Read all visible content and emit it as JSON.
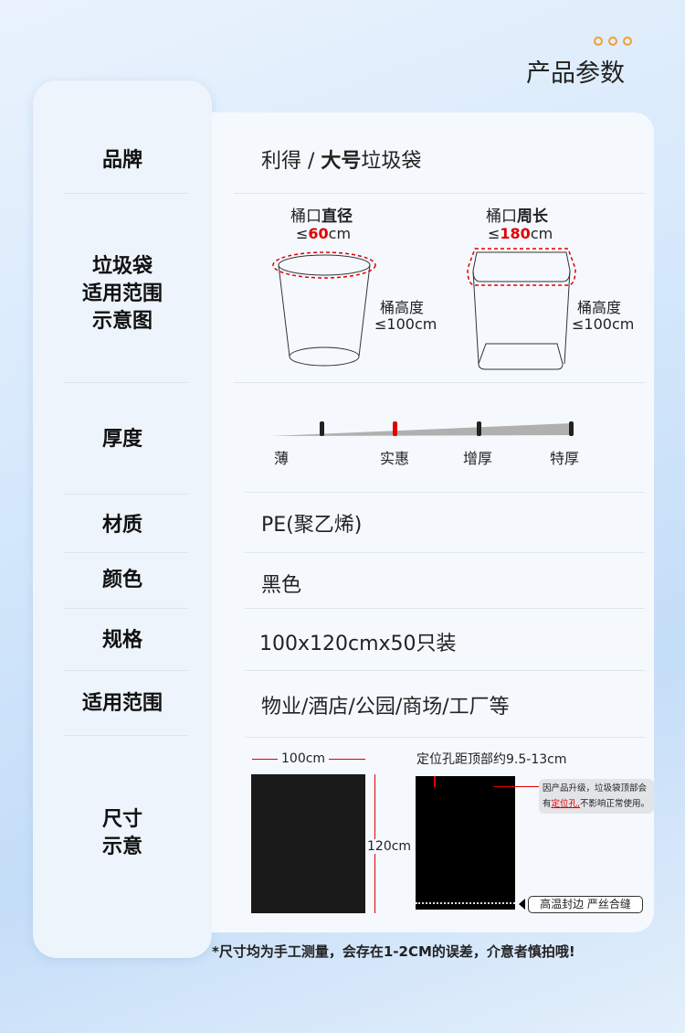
{
  "header": {
    "title": "产品参数"
  },
  "rows": {
    "brand": {
      "label": "品牌",
      "value_prefix": "利得 / ",
      "value_bold": "大号",
      "value_suffix": "垃圾袋"
    },
    "diagram": {
      "label": [
        "垃圾袋",
        "适用范围",
        "示意图"
      ],
      "round": {
        "top_label_a": "桶口",
        "top_label_b": "直径",
        "limit_prefix": "≤",
        "limit_value": "60",
        "limit_unit": "cm",
        "height_label": "桶高度",
        "height_value": "≤100cm"
      },
      "square": {
        "top_label_a": "桶口",
        "top_label_b": "周长",
        "limit_prefix": "≤",
        "limit_value": "180",
        "limit_unit": "cm",
        "height_label": "桶高度",
        "height_value": "≤100cm"
      }
    },
    "thickness": {
      "label": "厚度",
      "levels": [
        "薄",
        "实惠",
        "增厚",
        "特厚"
      ],
      "selected": "实惠",
      "accent": "#e10000"
    },
    "material": {
      "label": "材质",
      "value": "PE(聚乙烯)"
    },
    "color": {
      "label": "颜色",
      "value": "黑色"
    },
    "spec": {
      "label": "规格",
      "value": "100x120cmx50只装"
    },
    "usage": {
      "label": "适用范围",
      "value": "物业/酒店/公园/商场/工厂等"
    },
    "size": {
      "label": [
        "尺寸",
        "示意"
      ],
      "width": "100cm",
      "height": "120cm",
      "hole_note": "定位孔距顶部约9.5-13cm",
      "callout_a": "因产品升级，垃圾袋顶部会",
      "callout_b": "有",
      "callout_red": "定位孔,",
      "callout_c": "不影响正常使用。",
      "seal": "高温封边 严丝合缝"
    }
  },
  "footer": {
    "note": "*尺寸均为手工测量，会存在1-2CM的误差，介意者慎拍哦!"
  }
}
